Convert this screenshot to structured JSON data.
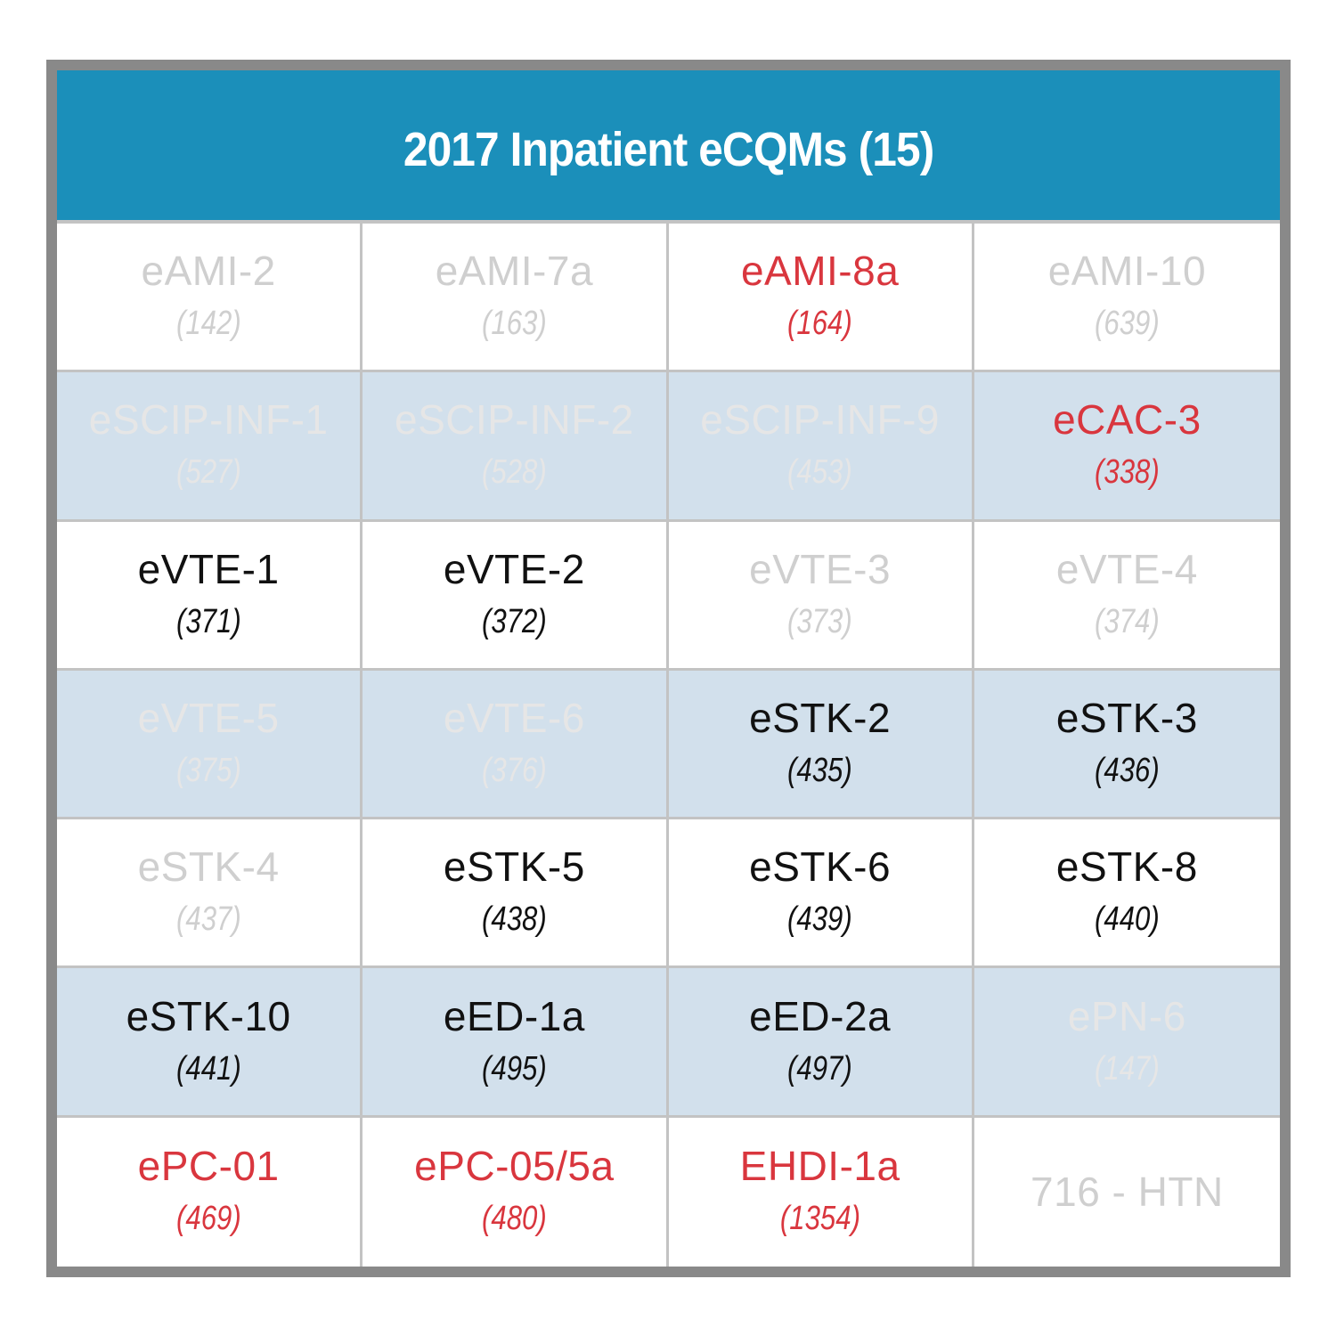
{
  "title": "2017 Inpatient eCQMs (15)",
  "colors": {
    "header_bg": "#1b8fba",
    "frame": "#898989",
    "shaded_row": "#d2e0ec",
    "red": "#d9363e",
    "black": "#111111",
    "gray": "#cfcfcf"
  },
  "rows": [
    [
      {
        "name": "eAMI-2",
        "code": "(142)",
        "status": "gray"
      },
      {
        "name": "eAMI-7a",
        "code": "(163)",
        "status": "gray"
      },
      {
        "name": "eAMI-8a",
        "code": "(164)",
        "status": "red"
      },
      {
        "name": "eAMI-10",
        "code": "(639)",
        "status": "gray"
      }
    ],
    [
      {
        "name": "eSCIP-INF-1",
        "code": "(527)",
        "status": "gray"
      },
      {
        "name": "eSCIP-INF-2",
        "code": "(528)",
        "status": "gray"
      },
      {
        "name": "eSCIP-INF-9",
        "code": "(453)",
        "status": "gray"
      },
      {
        "name": "eCAC-3",
        "code": "(338)",
        "status": "red"
      }
    ],
    [
      {
        "name": "eVTE-1",
        "code": "(371)",
        "status": "black"
      },
      {
        "name": "eVTE-2",
        "code": "(372)",
        "status": "black"
      },
      {
        "name": "eVTE-3",
        "code": "(373)",
        "status": "gray"
      },
      {
        "name": "eVTE-4",
        "code": "(374)",
        "status": "gray"
      }
    ],
    [
      {
        "name": "eVTE-5",
        "code": "(375)",
        "status": "gray"
      },
      {
        "name": "eVTE-6",
        "code": "(376)",
        "status": "gray"
      },
      {
        "name": "eSTK-2",
        "code": "(435)",
        "status": "black"
      },
      {
        "name": "eSTK-3",
        "code": "(436)",
        "status": "black"
      }
    ],
    [
      {
        "name": "eSTK-4",
        "code": "(437)",
        "status": "gray"
      },
      {
        "name": "eSTK-5",
        "code": "(438)",
        "status": "black"
      },
      {
        "name": "eSTK-6",
        "code": "(439)",
        "status": "black"
      },
      {
        "name": "eSTK-8",
        "code": "(440)",
        "status": "black"
      }
    ],
    [
      {
        "name": "eSTK-10",
        "code": "(441)",
        "status": "black"
      },
      {
        "name": "eED-1a",
        "code": "(495)",
        "status": "black"
      },
      {
        "name": "eED-2a",
        "code": "(497)",
        "status": "black"
      },
      {
        "name": "ePN-6",
        "code": "(147)",
        "status": "gray"
      }
    ],
    [
      {
        "name": "ePC-01",
        "code": "(469)",
        "status": "red"
      },
      {
        "name": "ePC-05/5a",
        "code": "(480)",
        "status": "red"
      },
      {
        "name": "EHDI-1a",
        "code": "(1354)",
        "status": "red"
      },
      {
        "name": "716 - HTN",
        "status": "gray"
      }
    ]
  ]
}
